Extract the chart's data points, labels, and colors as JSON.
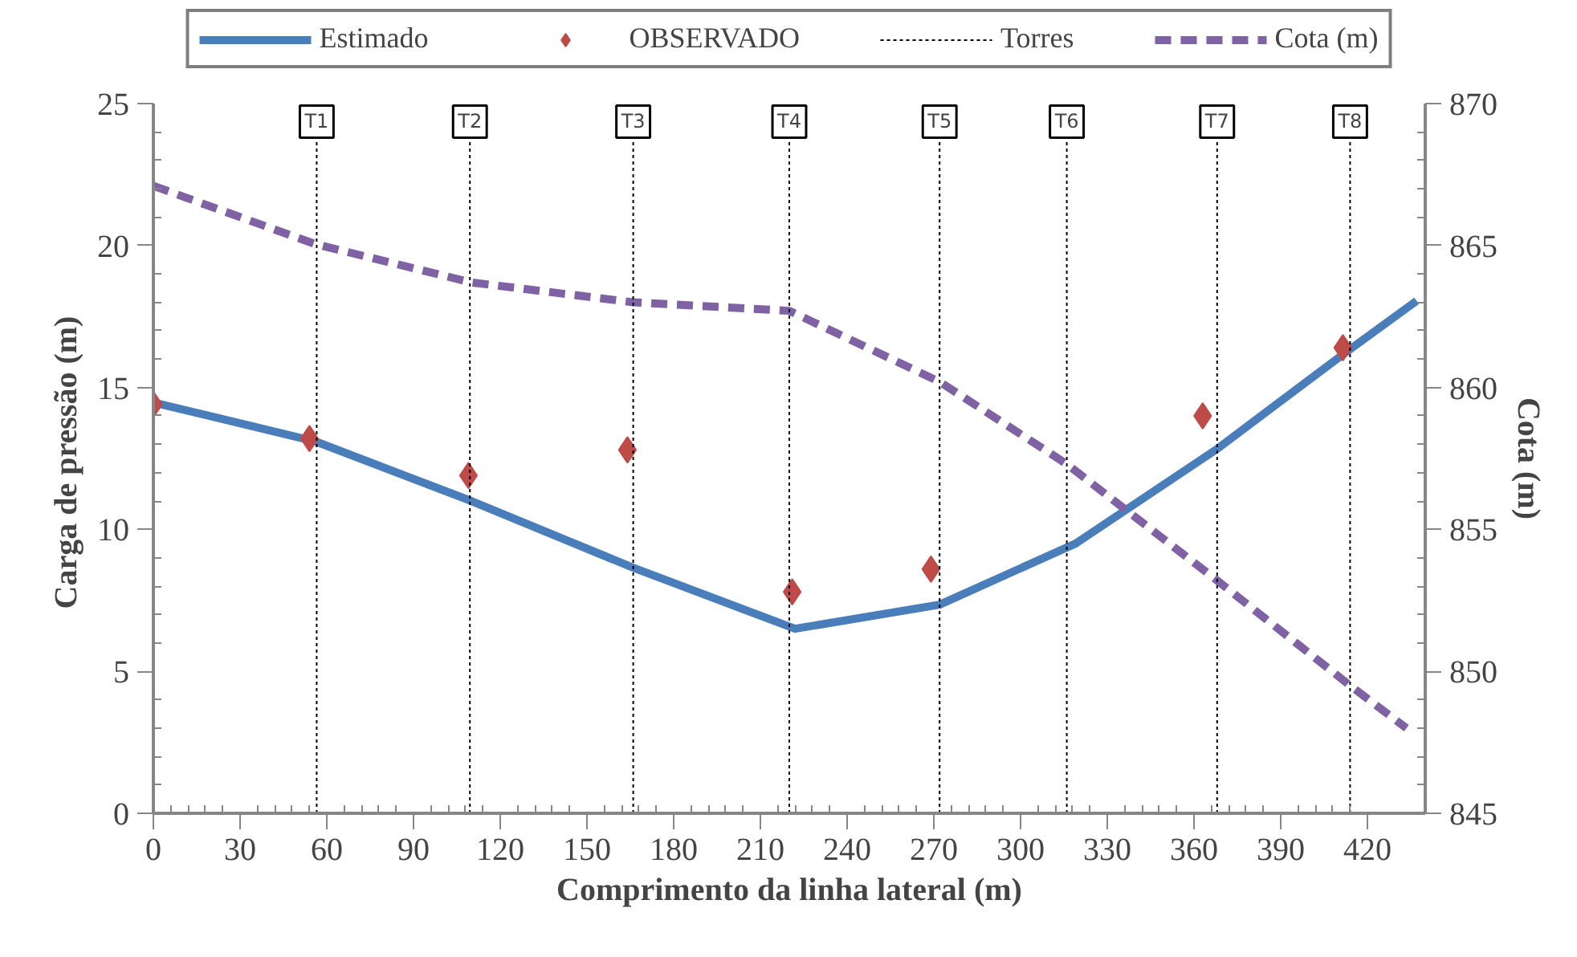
{
  "chart_data": {
    "type": "line",
    "xlabel": "Comprimento da linha lateral (m)",
    "ylabel": "Carga de pressão  (m)",
    "y2label": "Cota (m)",
    "xlim": [
      0,
      440
    ],
    "xticks": [
      0,
      30,
      60,
      90,
      120,
      150,
      180,
      210,
      240,
      270,
      300,
      330,
      360,
      390,
      420
    ],
    "ylim": [
      0,
      25
    ],
    "yticks": [
      0,
      5,
      10,
      15,
      20,
      25
    ],
    "y2lim": [
      845,
      870
    ],
    "y2ticks": [
      845,
      850,
      855,
      860,
      865,
      870
    ],
    "grid": false,
    "legend": "top",
    "annotations": [
      "Torres"
    ],
    "series": [
      {
        "name": "Estimado",
        "color": "#4a7ebb",
        "line_style": "solid",
        "marker": "none",
        "x": [
          0,
          56,
          110,
          166,
          222,
          272,
          319,
          367.5,
          412,
          437
        ],
        "values": [
          14.47,
          13.1,
          11.0,
          8.65,
          6.5,
          7.35,
          9.5,
          12.8,
          16.2,
          18.05
        ]
      },
      {
        "name": "OBSERVADO",
        "type": "scatter",
        "color": "#be4b48",
        "marker": "diamond",
        "x": [
          0,
          54,
          109,
          164,
          221,
          269,
          363,
          411.5
        ],
        "values": [
          14.4,
          13.2,
          11.9,
          12.8,
          7.8,
          8.6,
          14.0,
          16.4
        ]
      },
      {
        "name": "Cota (m)",
        "axis": "y2",
        "color": "#7f62a4",
        "line_style": "dashed",
        "marker": "none",
        "x": [
          0,
          56,
          110,
          166,
          220,
          272,
          316,
          368,
          414,
          433.5
        ],
        "values": [
          867.1,
          865.05,
          863.7,
          863.0,
          862.7,
          860.2,
          857.3,
          853.2,
          849.5,
          848.0
        ]
      }
    ],
    "ref_lines": [
      {
        "axis": "x",
        "value": 56.5,
        "label": "T1",
        "color": "#000000",
        "line_style": "dotted"
      },
      {
        "axis": "x",
        "value": 109.5,
        "label": "T2",
        "color": "#000000",
        "line_style": "dotted"
      },
      {
        "axis": "x",
        "value": 166,
        "label": "T3",
        "color": "#000000",
        "line_style": "dotted"
      },
      {
        "axis": "x",
        "value": 220,
        "label": "T4",
        "color": "#000000",
        "line_style": "dotted"
      },
      {
        "axis": "x",
        "value": 272,
        "label": "T5",
        "color": "#000000",
        "line_style": "dotted"
      },
      {
        "axis": "x",
        "value": 316,
        "label": "T6",
        "color": "#000000",
        "line_style": "dotted"
      },
      {
        "axis": "x",
        "value": 368,
        "label": "T7",
        "color": "#000000",
        "line_style": "dotted"
      },
      {
        "axis": "x",
        "value": 414,
        "label": "T8",
        "color": "#000000",
        "line_style": "dotted"
      }
    ]
  }
}
